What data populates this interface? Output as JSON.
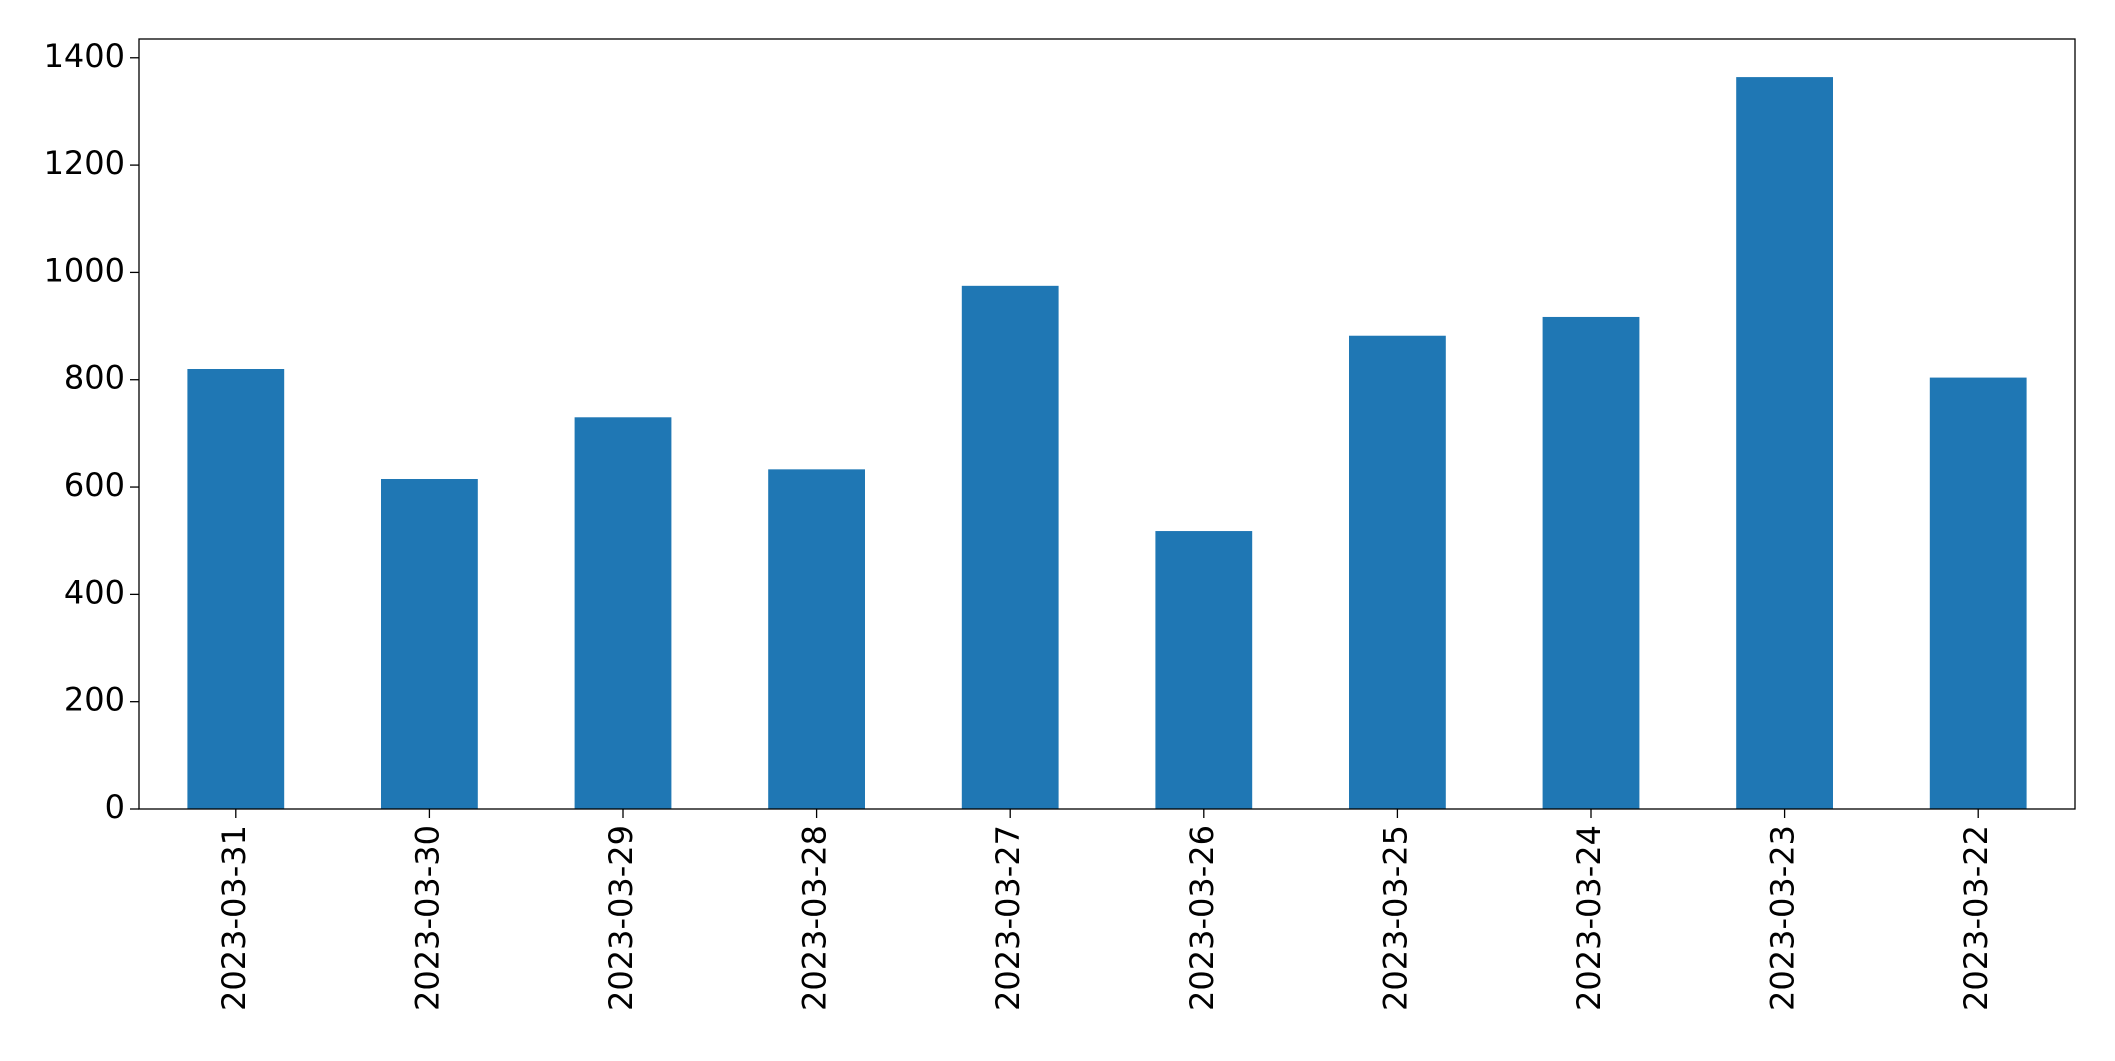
{
  "chart_data": {
    "type": "bar",
    "categories": [
      "2023-03-31",
      "2023-03-30",
      "2023-03-29",
      "2023-03-28",
      "2023-03-27",
      "2023-03-26",
      "2023-03-25",
      "2023-03-24",
      "2023-03-23",
      "2023-03-22"
    ],
    "values": [
      820,
      615,
      730,
      633,
      975,
      518,
      882,
      917,
      1364,
      804
    ],
    "color": "#1f77b4",
    "ylim": [
      0,
      1435
    ],
    "yticks": [
      0,
      200,
      400,
      600,
      800,
      1000,
      1200,
      1400
    ],
    "grid": false
  }
}
